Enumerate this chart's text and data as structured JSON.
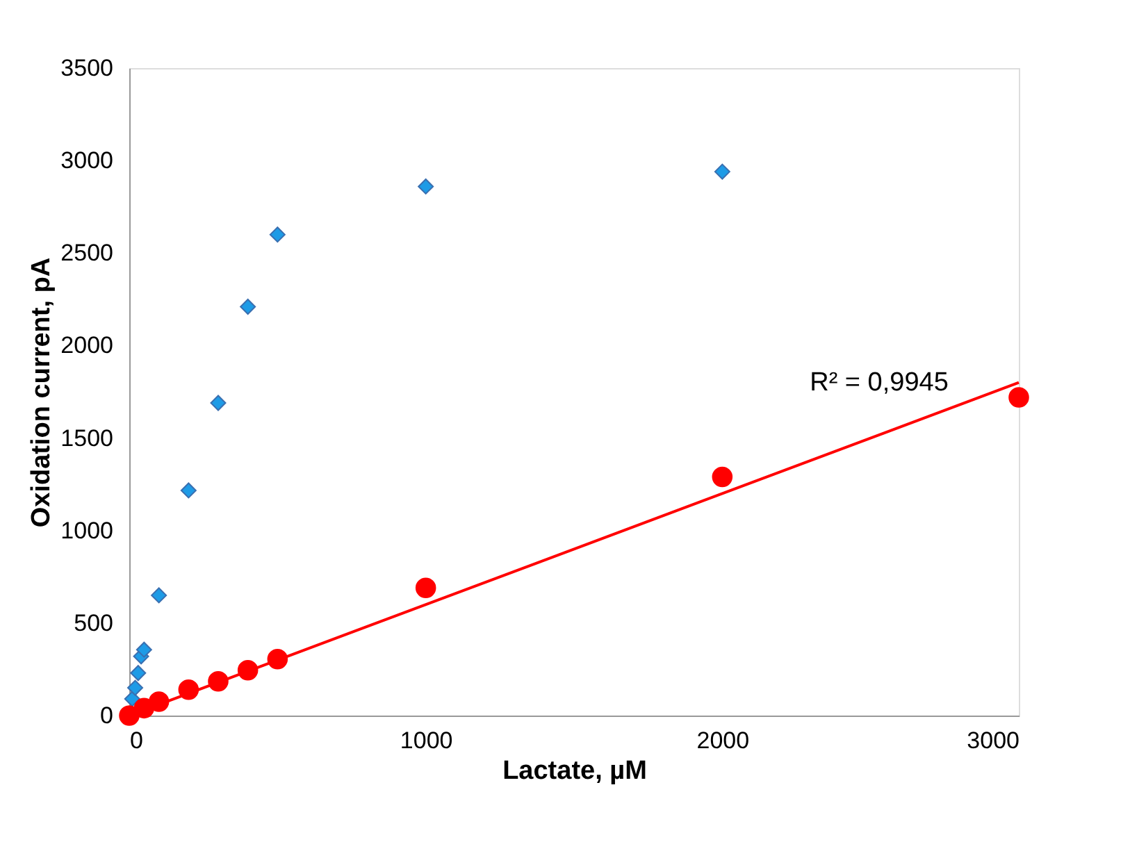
{
  "chart_data": {
    "type": "scatter",
    "xlabel": "Lactate, µM",
    "ylabel": "Oxidation current, pA",
    "xlim": [
      0,
      3000
    ],
    "xticks": [
      0,
      1000,
      2000,
      3000
    ],
    "ylim": [
      0,
      3500
    ],
    "yticks": [
      0,
      500,
      1000,
      1500,
      2000,
      2500,
      3000,
      3500
    ],
    "grid": false,
    "series": [
      {
        "marker": "diamond",
        "color": "#1e9be6",
        "x": [
          10,
          20,
          30,
          40,
          50,
          100,
          200,
          300,
          400,
          500,
          1000,
          2000
        ],
        "values": [
          90,
          150,
          230,
          320,
          356,
          650,
          1217,
          1690,
          2210,
          2600,
          2860,
          2940
        ]
      },
      {
        "marker": "circle",
        "color": "#ff0000",
        "x": [
          0,
          50,
          100,
          200,
          300,
          400,
          500,
          1000,
          2000,
          3000
        ],
        "values": [
          0,
          40,
          75,
          140,
          185,
          245,
          305,
          690,
          1290,
          1720
        ]
      },
      {
        "type": "line",
        "color": "#ff0000",
        "x": [
          0,
          3000
        ],
        "values": [
          0,
          1800
        ]
      }
    ],
    "annotations": [
      "R² = 0,9945"
    ]
  }
}
